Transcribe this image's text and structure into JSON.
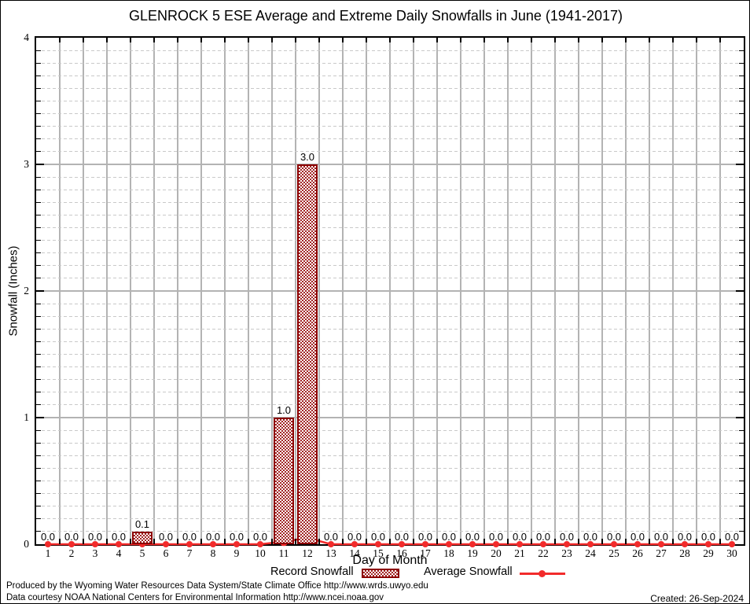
{
  "chart_data": {
    "type": "bar",
    "title": "GLENROCK 5 ESE Average and Extreme Daily Snowfalls in June (1941-2017)",
    "xlabel": "Day of Month",
    "ylabel": "Snowfall (Inches)",
    "ylim": [
      0,
      4
    ],
    "y_major_tick_step": 1,
    "y_minor_tick_step": 0.1,
    "grid": "on",
    "legend_position": "bottom-center",
    "categories": [
      "1",
      "2",
      "3",
      "4",
      "5",
      "6",
      "7",
      "8",
      "9",
      "10",
      "11",
      "12",
      "13",
      "14",
      "15",
      "16",
      "17",
      "18",
      "19",
      "20",
      "21",
      "22",
      "23",
      "24",
      "25",
      "26",
      "27",
      "28",
      "29",
      "30"
    ],
    "y_tick_labels": [
      "0",
      "1",
      "2",
      "3",
      "4"
    ],
    "series": [
      {
        "name": "Record Snowfall",
        "type": "bar",
        "values": [
          0.0,
          0.0,
          0.0,
          0.0,
          0.1,
          0.0,
          0.0,
          0.0,
          0.0,
          0.0,
          1.0,
          3.0,
          0.0,
          0.0,
          0.0,
          0.0,
          0.0,
          0.0,
          0.0,
          0.0,
          0.0,
          0.0,
          0.0,
          0.0,
          0.0,
          0.0,
          0.0,
          0.0,
          0.0,
          0.0
        ],
        "value_labels": [
          "0.0",
          "0.0",
          "0.0",
          "0.0",
          "0.1",
          "0.0",
          "0.0",
          "0.0",
          "0.0",
          "0.0",
          "1.0",
          "3.0",
          "0.0",
          "0.0",
          "0.0",
          "0.0",
          "0.0",
          "0.0",
          "0.0",
          "0.0",
          "0.0",
          "0.0",
          "0.0",
          "0.0",
          "0.0",
          "0.0",
          "0.0",
          "0.0",
          "0.0",
          "0.0"
        ]
      },
      {
        "name": "Average Snowfall",
        "type": "line",
        "values": [
          0,
          0,
          0,
          0,
          0,
          0,
          0,
          0,
          0,
          0,
          0.02,
          0.05,
          0,
          0,
          0,
          0,
          0,
          0,
          0,
          0,
          0,
          0,
          0,
          0,
          0,
          0,
          0,
          0,
          0,
          0
        ]
      }
    ]
  },
  "colors": {
    "bar_border": "#8b0000",
    "bar_hatch": "#a22525",
    "average_line": "#f22b2b",
    "grid_major": "#b3b3b3",
    "grid_minor": "#c9c9c9",
    "frame": "#000000"
  },
  "footer": {
    "line1": "Produced by the Wyoming Water Resources Data System/State Climate Office http://www.wrds.uwyo.edu",
    "line2": "Data courtesy NOAA National Centers for Environmental Information http://www.ncei.noaa.gov",
    "created": "Created: 26-Sep-2024"
  }
}
